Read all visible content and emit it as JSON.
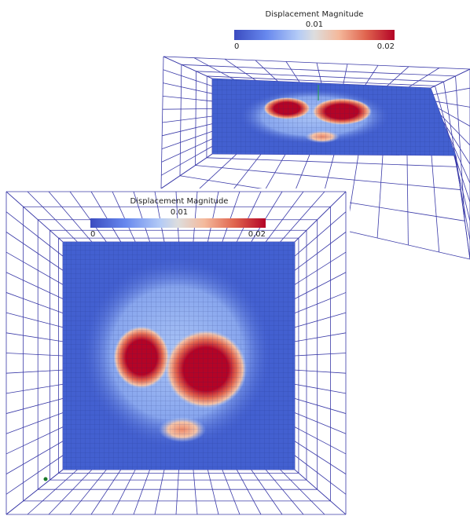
{
  "views": [
    {
      "colorbar": {
        "title": "Displacement Magnitude",
        "ticks": [
          0,
          0.01,
          0.02
        ]
      }
    },
    {
      "colorbar": {
        "title": "Displacement Magnitude",
        "ticks": [
          0,
          0.01,
          0.02
        ]
      }
    }
  ]
}
